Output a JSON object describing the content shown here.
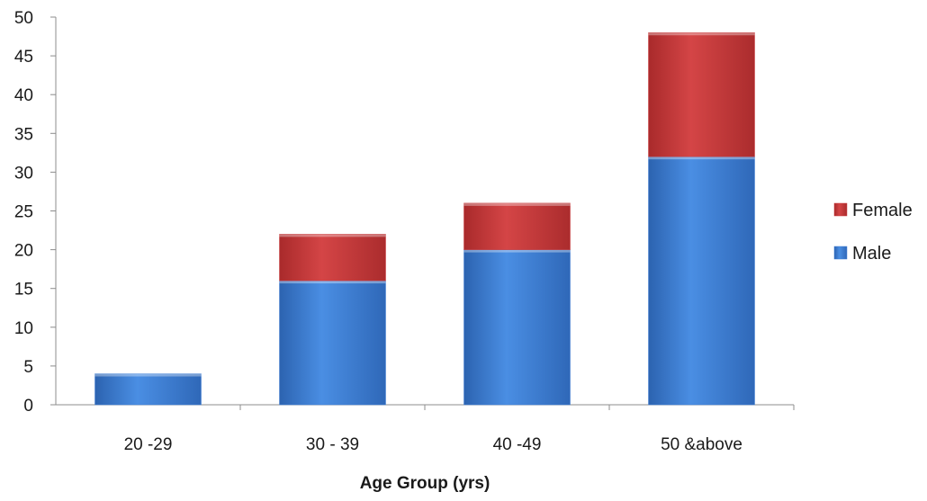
{
  "chart_data": {
    "type": "bar",
    "stacked": true,
    "categories": [
      "20 -29",
      "30 - 39",
      "40 -49",
      "50 &above"
    ],
    "series": [
      {
        "name": "Male",
        "values": [
          4,
          16,
          20,
          32
        ],
        "color": "#3f7fd6"
      },
      {
        "name": "Female",
        "values": [
          0,
          6,
          6,
          16
        ],
        "color": "#c9393a"
      }
    ],
    "title": "",
    "xlabel": "Age Group (yrs)",
    "ylabel": "",
    "ylim": [
      0,
      50
    ],
    "yticks": [
      0,
      5,
      10,
      15,
      20,
      25,
      30,
      35,
      40,
      45,
      50
    ],
    "grid": false,
    "legend": {
      "position": "right",
      "order": [
        "Female",
        "Male"
      ]
    }
  }
}
